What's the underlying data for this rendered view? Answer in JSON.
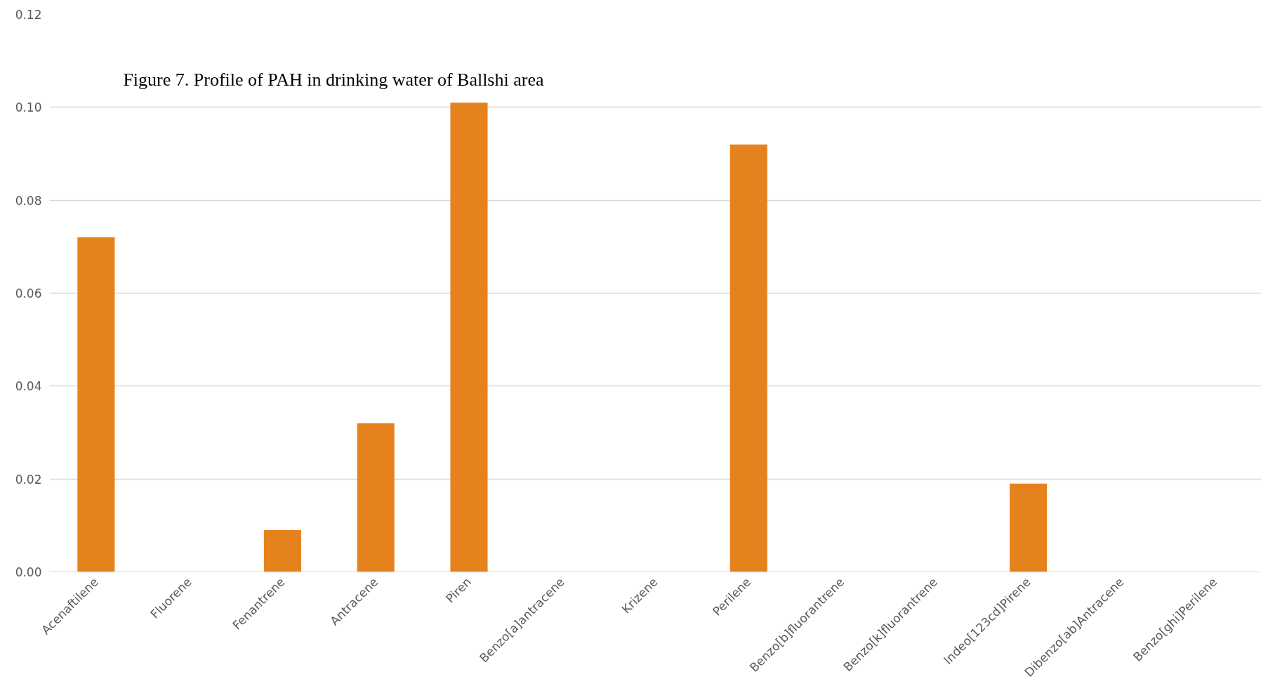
{
  "chart_data": {
    "type": "bar",
    "title": "Figure 7. Profile of PAH in drinking water of Ballshi area",
    "categories": [
      "Acenaftilene",
      "Fluorene",
      "Fenantrene",
      "Antracene",
      "Piren",
      "Benzo[a]antracene",
      "Krizene",
      "Perilene",
      "Benzo[b]fluorantrene",
      "Benzo[k]fluorantrene",
      "Indeo[123cd]Pirene",
      "Dibenzo[ab]Antracene",
      "Benzo[ghi]Perilene"
    ],
    "values": [
      0.072,
      0,
      0.009,
      0.032,
      0.101,
      0,
      0,
      0.092,
      0,
      0,
      0.019,
      0,
      0
    ],
    "color": "#e6821e",
    "ylim": [
      0,
      0.12
    ],
    "yticks": [
      {
        "value": 0,
        "label": "0.00"
      },
      {
        "value": 0.02,
        "label": "0.02"
      },
      {
        "value": 0.04,
        "label": "0.04"
      },
      {
        "value": 0.06,
        "label": "0.06"
      },
      {
        "value": 0.08,
        "label": "0.08"
      },
      {
        "value": 0.1,
        "label": "0.10"
      },
      {
        "value": 0.12,
        "label": "0.12"
      }
    ],
    "grid": "y"
  }
}
